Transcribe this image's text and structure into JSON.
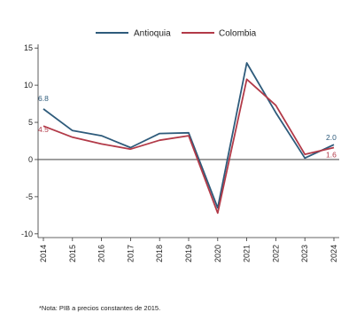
{
  "chart_data": {
    "type": "line",
    "title": "",
    "xlabel": "",
    "ylabel": "",
    "x": [
      "2014",
      "2015",
      "2016",
      "2017",
      "2018",
      "2019",
      "2020",
      "2021",
      "2022",
      "2023",
      "2024"
    ],
    "ylim": [
      -10.5,
      15.5
    ],
    "yticks": [
      -10,
      -5,
      0,
      5,
      10,
      15
    ],
    "ytick_labels": [
      "-10",
      "-5",
      "0",
      "5",
      "10",
      "15"
    ],
    "legend_position": "top-center",
    "grid": false,
    "zero_line": true,
    "series": [
      {
        "name": "Antioquia",
        "color": "#2e5b7b",
        "values": [
          6.8,
          3.9,
          3.2,
          1.6,
          3.5,
          3.6,
          -6.5,
          13.0,
          6.3,
          0.2,
          2.0
        ]
      },
      {
        "name": "Colombia",
        "color": "#b23a48",
        "values": [
          4.5,
          3.0,
          2.1,
          1.4,
          2.6,
          3.2,
          -7.2,
          10.8,
          7.3,
          0.7,
          1.6
        ]
      }
    ],
    "annotations": [
      {
        "series": "Antioquia",
        "x": "2014",
        "text": "6.8"
      },
      {
        "series": "Colombia",
        "x": "2014",
        "text": "4.5"
      },
      {
        "series": "Antioquia",
        "x": "2024",
        "text": "2.0"
      },
      {
        "series": "Colombia",
        "x": "2024",
        "text": "1.6"
      }
    ]
  },
  "note": "*Nota: PIB a precios constantes de 2015."
}
